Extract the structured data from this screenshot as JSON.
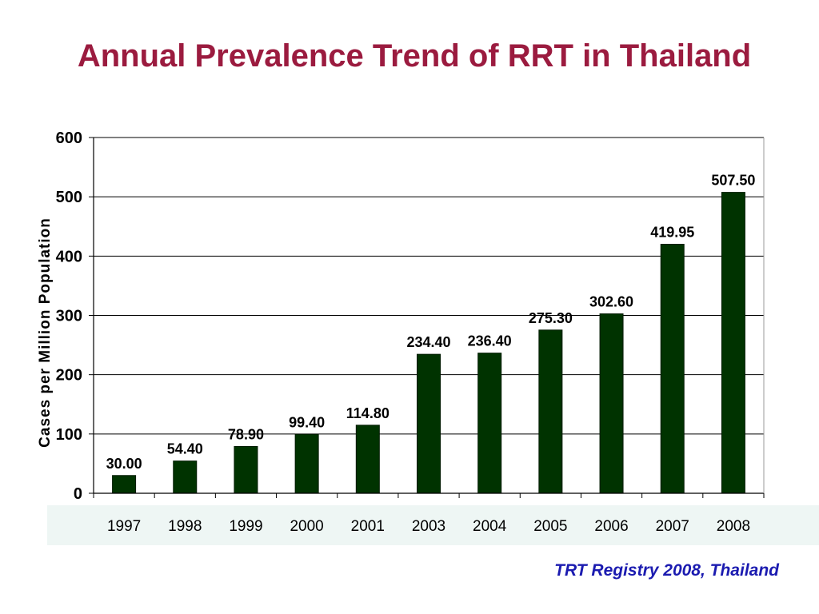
{
  "page": {
    "title": "Annual Prevalence Trend of RRT in Thailand",
    "source": "TRT Registry 2008, Thailand"
  },
  "colors": {
    "title": "#9b1b3f",
    "bar": "#003300",
    "source": "#1b1bb0",
    "band": "#eef6f4"
  },
  "chart_data": {
    "type": "bar",
    "title": "Annual Prevalence Trend of RRT in Thailand",
    "xlabel": "",
    "ylabel": "Cases per Million Population",
    "categories": [
      "1997",
      "1998",
      "1999",
      "2000",
      "2001",
      "2003",
      "2004",
      "2005",
      "2006",
      "2007",
      "2008"
    ],
    "values": [
      30.0,
      54.4,
      78.9,
      99.4,
      114.8,
      234.4,
      236.4,
      275.3,
      302.6,
      419.95,
      507.5
    ],
    "value_labels": [
      "30.00",
      "54.40",
      "78.90",
      "99.40",
      "114.80",
      "234.40",
      "236.40",
      "275.30",
      "302.60",
      "419.95",
      "507.50"
    ],
    "ylim": [
      0,
      600
    ],
    "yticks": [
      0,
      100,
      200,
      300,
      400,
      500,
      600
    ],
    "grid": true,
    "legend": "none"
  }
}
